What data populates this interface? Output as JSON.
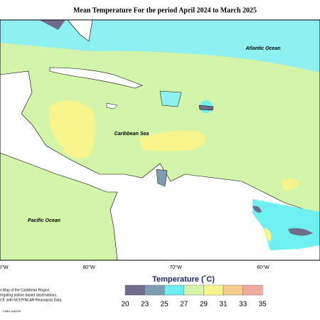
{
  "title": "Mean Temperature For the period April 2024 to March 2025",
  "map": {
    "labels": [
      "Atlantic Ocean",
      "Caribbean Sea",
      "Pacific Ocean"
    ],
    "longitudes": [
      "0°W",
      "80°W",
      "70°W",
      "60°W"
    ]
  },
  "legend": {
    "title": "Temperature (˚C)",
    "ticks": [
      20,
      23,
      25,
      27,
      29,
      31,
      33,
      35
    ],
    "colors": [
      "#6f6c8c",
      "#7e9db3",
      "#6ff0f0",
      "#d3f5a9",
      "#f6f48a",
      "#f4cc8c",
      "#efaaa2"
    ]
  },
  "notes": [
    "n Map of the Caribbean Region",
    "regating station based observations,",
    "CF, with NCEP/NCAR Reanalysis Data.",
    "CIMH Jul2025"
  ]
}
